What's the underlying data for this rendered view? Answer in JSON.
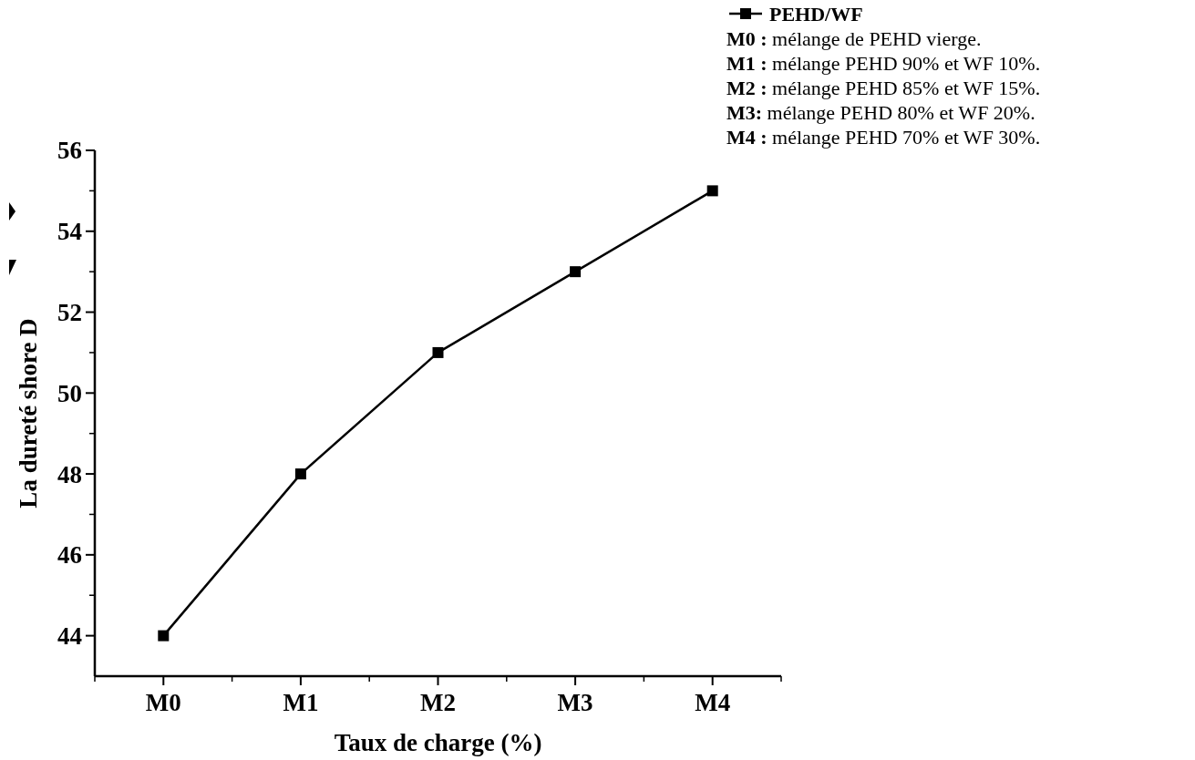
{
  "chart_data": {
    "type": "line",
    "xlabel": "Taux de charge (%)",
    "ylabel": "La dureté shore D",
    "categories": [
      "M0",
      "M1",
      "M2",
      "M3",
      "M4"
    ],
    "series": [
      {
        "name": "PEHD/WF",
        "color": "#000000",
        "values": [
          44,
          48,
          51,
          53,
          55
        ]
      }
    ],
    "ylim": [
      43,
      56
    ],
    "yticks": [
      44,
      46,
      48,
      50,
      52,
      54,
      56
    ],
    "grid": false,
    "legend": "top right",
    "marker": "square",
    "line_style": "solid",
    "annotations": [
      "M0 : mélange de PEHD vierge.",
      "M1 : mélange PEHD 90% et WF 10%.",
      "M2 : mélange PEHD 85% et WF 15%.",
      "M3: mélange PEHD 80% et WF 20%.",
      "M4 : mélange PEHD 70% et WF 30%."
    ]
  }
}
